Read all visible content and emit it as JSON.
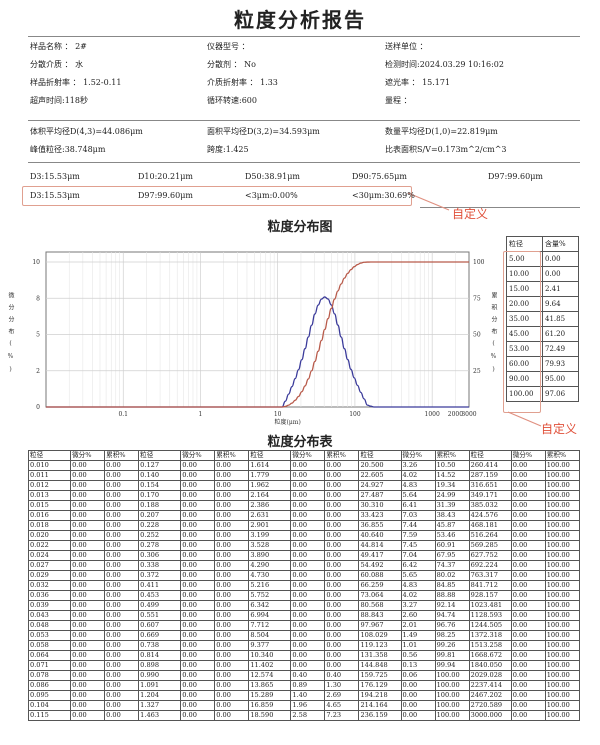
{
  "report_title": "粒度分析报告",
  "info": [
    [
      "样品名称 ： 2#",
      "仪器型号 ：",
      "送样单位 ："
    ],
    [
      "分散介质 ： 水",
      "分散剂 ： No",
      "检测时间:2024.03.29 10:16:02"
    ],
    [
      "样品折射率 ： 1.52-0.11",
      "介质折射率 ： 1.33",
      "遮光率 ： 15.171"
    ],
    [
      "超声时间:118秒",
      "循环转速:600",
      "量程 ："
    ]
  ],
  "means": [
    [
      "体积平均径D(4,3)=44.086μm",
      "面积平均径D(3,2)=34.593μm",
      "数量平均径D(1,0)=22.819μm"
    ],
    [
      "峰值粒径:38.748μm",
      "跨度:1.425",
      "比表面积S/V=0.173m^2/cm^3"
    ]
  ],
  "d_values": [
    "D3:15.53μm",
    "D10:20.21μm",
    "D50:38.91μm",
    "D90:75.65μm",
    "D97:99.60μm"
  ],
  "custom_values": [
    "D3:15.53μm",
    "D97:99.60μm",
    "<3μm:0.00%",
    "<30μm:30.69%"
  ],
  "annotation_label": "自定义",
  "chart_title": "粒度分布图",
  "chart_data": {
    "type": "line",
    "xlabel": "粒度(μm)",
    "ylabel_left": "微分分布(%)",
    "ylabel_right": "累积分布(%)",
    "x_scale": "log",
    "xlim": [
      0.01,
      3000
    ],
    "x_ticks": [
      "0.1",
      "1",
      "10",
      "100",
      "1000",
      "2000",
      "3000"
    ],
    "x_tick_values": [
      0.1,
      1,
      10,
      100,
      1000,
      2000,
      3000
    ],
    "ylim_left": [
      0,
      10
    ],
    "y_left_ticks": [
      "0",
      "2",
      "5",
      "8",
      "10"
    ],
    "y_left_tick_values": [
      0,
      2.5,
      5,
      7.5,
      10
    ],
    "ylim_right": [
      0,
      100
    ],
    "y_right_ticks": [
      "25",
      "50",
      "75",
      "100"
    ],
    "y_right_tick_values": [
      25,
      50,
      75,
      100
    ],
    "grid": true,
    "x": [
      0.01,
      9.377,
      10.34,
      11.402,
      12.574,
      13.865,
      15.289,
      16.859,
      18.59,
      20.5,
      22.605,
      24.927,
      27.487,
      30.31,
      33.423,
      36.855,
      40.64,
      44.814,
      49.417,
      54.492,
      60.088,
      66.259,
      73.064,
      80.568,
      88.843,
      97.967,
      108.029,
      119.123,
      131.358,
      144.848,
      159.725,
      176.129,
      3000
    ],
    "series": [
      {
        "axis": "left",
        "color": "#3a3a9a",
        "values": [
          0,
          0,
          0,
          0,
          0.4,
          0.89,
          1.4,
          1.96,
          2.58,
          3.26,
          4.02,
          4.83,
          5.64,
          6.41,
          7.03,
          7.44,
          7.59,
          7.45,
          7.04,
          6.42,
          5.65,
          4.83,
          4.02,
          3.27,
          2.6,
          2.01,
          1.49,
          1.01,
          0.56,
          0.13,
          0.06,
          0,
          0
        ]
      },
      {
        "axis": "right",
        "color": "#b85a4a",
        "values": [
          0,
          0,
          0,
          0,
          0.4,
          1.3,
          2.69,
          4.65,
          7.23,
          10.5,
          14.52,
          19.34,
          24.99,
          31.39,
          38.43,
          45.87,
          53.46,
          60.91,
          67.95,
          74.37,
          80.02,
          84.85,
          88.88,
          92.14,
          94.74,
          96.76,
          98.25,
          99.26,
          99.81,
          99.94,
          100,
          100,
          100
        ]
      }
    ]
  },
  "mini_table": {
    "headers": [
      "粒径",
      "含量%"
    ],
    "rows": [
      [
        "5.00",
        "0.00"
      ],
      [
        "10.00",
        "0.00"
      ],
      [
        "15.00",
        "2.41"
      ],
      [
        "20.00",
        "9.64"
      ],
      [
        "35.00",
        "41.85"
      ],
      [
        "45.00",
        "61.20"
      ],
      [
        "53.00",
        "72.49"
      ],
      [
        "60.00",
        "79.93"
      ],
      [
        "90.00",
        "95.00"
      ],
      [
        "100.00",
        "97.06"
      ]
    ]
  },
  "table_title": "粒度分布表",
  "dist_table": {
    "headers": [
      "粒径",
      "微分%",
      "累积%",
      "粒径",
      "微分%",
      "累积%",
      "粒径",
      "微分%",
      "累积%",
      "粒径",
      "微分%",
      "累积%",
      "粒径",
      "微分%",
      "累积%"
    ],
    "rows": [
      [
        "0.010",
        "0.00",
        "0.00",
        "0.127",
        "0.00",
        "0.00",
        "1.614",
        "0.00",
        "0.00",
        "20.500",
        "3.26",
        "10.50",
        "260.414",
        "0.00",
        "100.00"
      ],
      [
        "0.011",
        "0.00",
        "0.00",
        "0.140",
        "0.00",
        "0.00",
        "1.779",
        "0.00",
        "0.00",
        "22.605",
        "4.02",
        "14.52",
        "287.159",
        "0.00",
        "100.00"
      ],
      [
        "0.012",
        "0.00",
        "0.00",
        "0.154",
        "0.00",
        "0.00",
        "1.962",
        "0.00",
        "0.00",
        "24.927",
        "4.83",
        "19.34",
        "316.651",
        "0.00",
        "100.00"
      ],
      [
        "0.013",
        "0.00",
        "0.00",
        "0.170",
        "0.00",
        "0.00",
        "2.164",
        "0.00",
        "0.00",
        "27.487",
        "5.64",
        "24.99",
        "349.171",
        "0.00",
        "100.00"
      ],
      [
        "0.015",
        "0.00",
        "0.00",
        "0.188",
        "0.00",
        "0.00",
        "2.386",
        "0.00",
        "0.00",
        "30.310",
        "6.41",
        "31.39",
        "385.032",
        "0.00",
        "100.00"
      ],
      [
        "0.016",
        "0.00",
        "0.00",
        "0.207",
        "0.00",
        "0.00",
        "2.631",
        "0.00",
        "0.00",
        "33.423",
        "7.03",
        "38.43",
        "424.576",
        "0.00",
        "100.00"
      ],
      [
        "0.018",
        "0.00",
        "0.00",
        "0.228",
        "0.00",
        "0.00",
        "2.901",
        "0.00",
        "0.00",
        "36.855",
        "7.44",
        "45.87",
        "468.181",
        "0.00",
        "100.00"
      ],
      [
        "0.020",
        "0.00",
        "0.00",
        "0.252",
        "0.00",
        "0.00",
        "3.199",
        "0.00",
        "0.00",
        "40.640",
        "7.59",
        "53.46",
        "516.264",
        "0.00",
        "100.00"
      ],
      [
        "0.022",
        "0.00",
        "0.00",
        "0.278",
        "0.00",
        "0.00",
        "3.528",
        "0.00",
        "0.00",
        "44.814",
        "7.45",
        "60.91",
        "569.285",
        "0.00",
        "100.00"
      ],
      [
        "0.024",
        "0.00",
        "0.00",
        "0.306",
        "0.00",
        "0.00",
        "3.890",
        "0.00",
        "0.00",
        "49.417",
        "7.04",
        "67.95",
        "627.752",
        "0.00",
        "100.00"
      ],
      [
        "0.027",
        "0.00",
        "0.00",
        "0.338",
        "0.00",
        "0.00",
        "4.290",
        "0.00",
        "0.00",
        "54.492",
        "6.42",
        "74.37",
        "692.224",
        "0.00",
        "100.00"
      ],
      [
        "0.029",
        "0.00",
        "0.00",
        "0.372",
        "0.00",
        "0.00",
        "4.730",
        "0.00",
        "0.00",
        "60.088",
        "5.65",
        "80.02",
        "763.317",
        "0.00",
        "100.00"
      ],
      [
        "0.032",
        "0.00",
        "0.00",
        "0.411",
        "0.00",
        "0.00",
        "5.216",
        "0.00",
        "0.00",
        "66.259",
        "4.83",
        "84.85",
        "841.712",
        "0.00",
        "100.00"
      ],
      [
        "0.036",
        "0.00",
        "0.00",
        "0.453",
        "0.00",
        "0.00",
        "5.752",
        "0.00",
        "0.00",
        "73.064",
        "4.02",
        "88.88",
        "928.157",
        "0.00",
        "100.00"
      ],
      [
        "0.039",
        "0.00",
        "0.00",
        "0.499",
        "0.00",
        "0.00",
        "6.342",
        "0.00",
        "0.00",
        "80.568",
        "3.27",
        "92.14",
        "1023.481",
        "0.00",
        "100.00"
      ],
      [
        "0.043",
        "0.00",
        "0.00",
        "0.551",
        "0.00",
        "0.00",
        "6.994",
        "0.00",
        "0.00",
        "88.843",
        "2.60",
        "94.74",
        "1128.593",
        "0.00",
        "100.00"
      ],
      [
        "0.048",
        "0.00",
        "0.00",
        "0.607",
        "0.00",
        "0.00",
        "7.712",
        "0.00",
        "0.00",
        "97.967",
        "2.01",
        "96.76",
        "1244.505",
        "0.00",
        "100.00"
      ],
      [
        "0.053",
        "0.00",
        "0.00",
        "0.669",
        "0.00",
        "0.00",
        "8.504",
        "0.00",
        "0.00",
        "108.029",
        "1.49",
        "98.25",
        "1372.318",
        "0.00",
        "100.00"
      ],
      [
        "0.058",
        "0.00",
        "0.00",
        "0.738",
        "0.00",
        "0.00",
        "9.377",
        "0.00",
        "0.00",
        "119.123",
        "1.01",
        "99.26",
        "1513.258",
        "0.00",
        "100.00"
      ],
      [
        "0.064",
        "0.00",
        "0.00",
        "0.814",
        "0.00",
        "0.00",
        "10.340",
        "0.00",
        "0.00",
        "131.358",
        "0.56",
        "99.81",
        "1668.672",
        "0.00",
        "100.00"
      ],
      [
        "0.071",
        "0.00",
        "0.00",
        "0.898",
        "0.00",
        "0.00",
        "11.402",
        "0.00",
        "0.00",
        "144.848",
        "0.13",
        "99.94",
        "1840.050",
        "0.00",
        "100.00"
      ],
      [
        "0.078",
        "0.00",
        "0.00",
        "0.990",
        "0.00",
        "0.00",
        "12.574",
        "0.40",
        "0.40",
        "159.725",
        "0.06",
        "100.00",
        "2029.028",
        "0.00",
        "100.00"
      ],
      [
        "0.086",
        "0.00",
        "0.00",
        "1.091",
        "0.00",
        "0.00",
        "13.865",
        "0.89",
        "1.30",
        "176.129",
        "0.00",
        "100.00",
        "2237.414",
        "0.00",
        "100.00"
      ],
      [
        "0.095",
        "0.00",
        "0.00",
        "1.204",
        "0.00",
        "0.00",
        "15.289",
        "1.40",
        "2.69",
        "194.218",
        "0.00",
        "100.00",
        "2467.202",
        "0.00",
        "100.00"
      ],
      [
        "0.104",
        "0.00",
        "0.00",
        "1.327",
        "0.00",
        "0.00",
        "16.859",
        "1.96",
        "4.65",
        "214.164",
        "0.00",
        "100.00",
        "2720.589",
        "0.00",
        "100.00"
      ],
      [
        "0.115",
        "0.00",
        "0.00",
        "1.463",
        "0.00",
        "0.00",
        "18.590",
        "2.58",
        "7.23",
        "236.159",
        "0.00",
        "100.00",
        "3000.000",
        "0.00",
        "100.00"
      ]
    ]
  }
}
